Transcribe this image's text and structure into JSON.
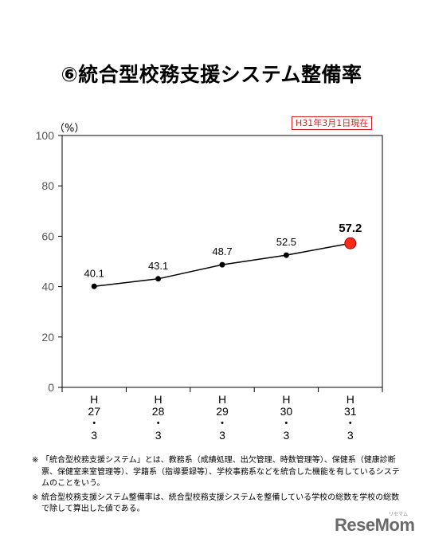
{
  "page": {
    "title": "⑥統合型校務支援システム整備率",
    "unit": "（%）",
    "as_of": "H31年3月1日現在",
    "notes": [
      {
        "mark": "※",
        "text": "「統合型校務支援システム」とは、教務系（成績処理、出欠管理、時数管理等）、保健系（健康診断票、保健室来室管理等）、学籍系（指導要録等）、学校事務系などを統合した機能を有しているシステムのことをいう。"
      },
      {
        "mark": "※",
        "text": "統合型校務支援システム整備率は、統合型校務支援システムを整備している学校の総数を学校の総数で除して算出した値である。"
      }
    ],
    "logo": "ReseMom",
    "logo_sub": "リセマム"
  },
  "chart_data": {
    "type": "line",
    "title": "⑥統合型校務支援システム整備率",
    "ylabel": "（%）",
    "xlabel": "",
    "categories": [
      "H\n27\n・\n3",
      "H\n28\n・\n3",
      "H\n29\n・\n3",
      "H\n30\n・\n3",
      "H\n31\n・\n3"
    ],
    "values": [
      40.1,
      43.1,
      48.7,
      52.5,
      57.2
    ],
    "data_labels": [
      "40.1",
      "43.1",
      "48.7",
      "52.5",
      "57.2"
    ],
    "ylim": [
      0,
      100
    ],
    "yticks": [
      0,
      20,
      40,
      60,
      80,
      100
    ],
    "grid": false,
    "legend": "none",
    "colors": {
      "line": "#000000",
      "marker": "#000000",
      "highlight_marker": "#ff2a1a"
    }
  }
}
